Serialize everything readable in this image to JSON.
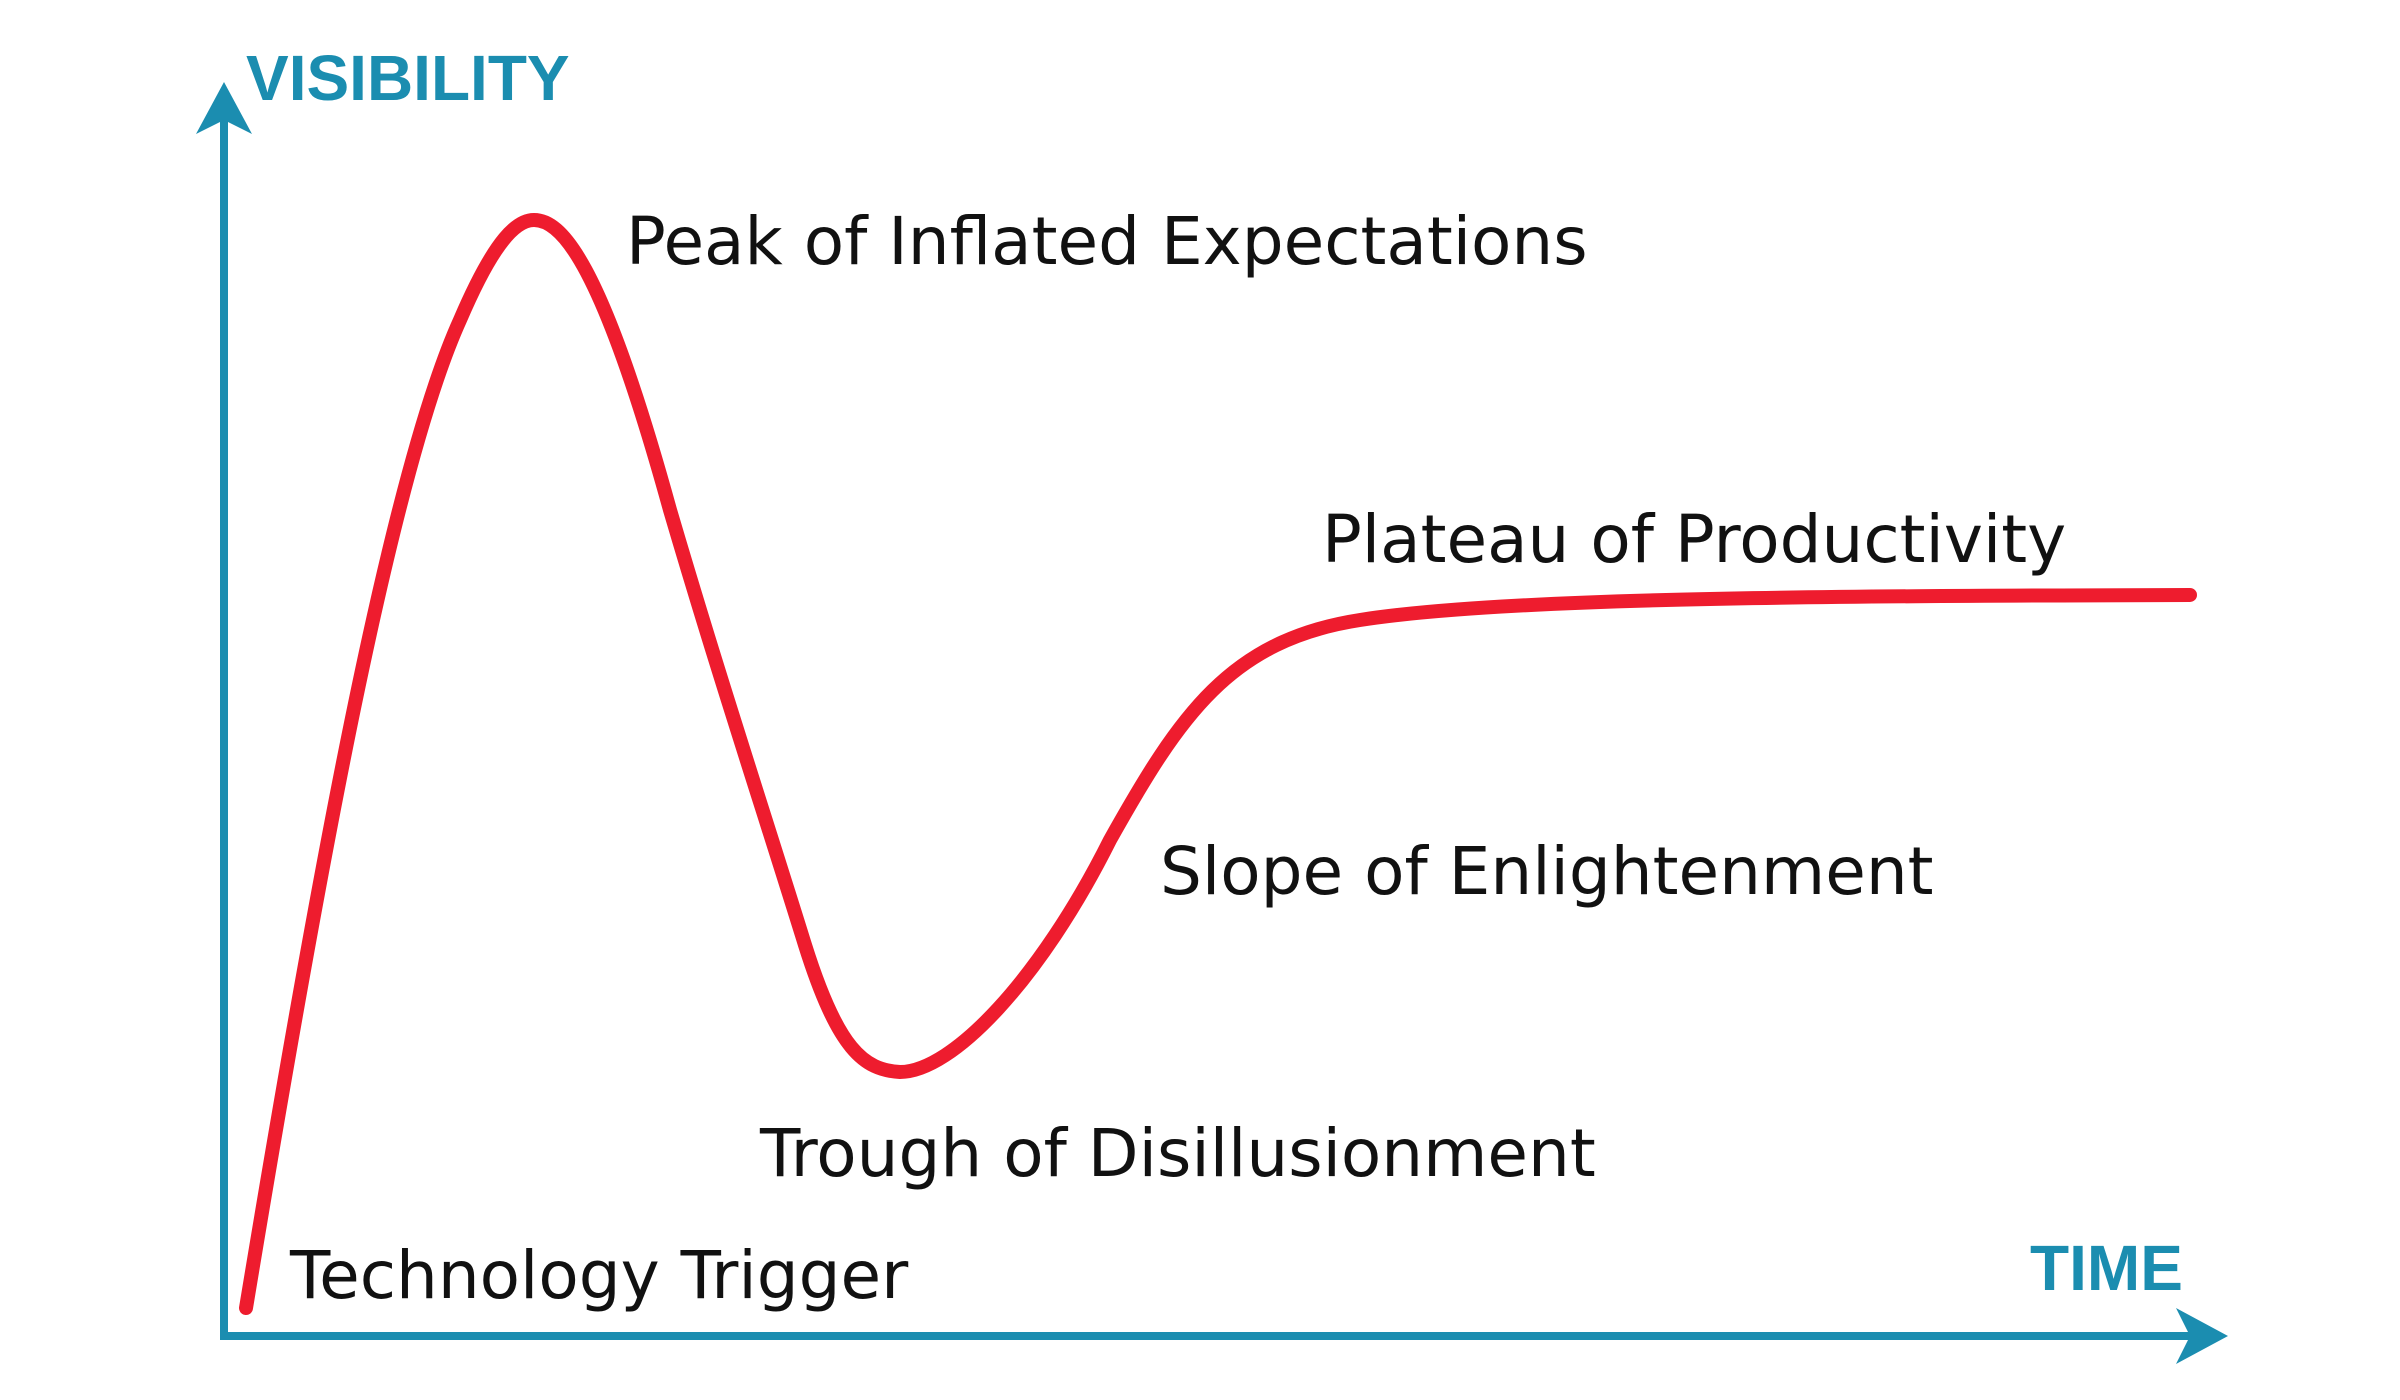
{
  "axes": {
    "y_label": "VISIBILITY",
    "x_label": "TIME"
  },
  "phases": {
    "technology_trigger": "Technology Trigger",
    "peak": "Peak of Inflated Expectations",
    "trough": "Trough of Disillusionment",
    "slope": "Slope of Enlightenment",
    "plateau": "Plateau of Productivity"
  },
  "colors": {
    "axis": "#1b8db0",
    "curve": "#ee1c2e",
    "text": "#111111",
    "background": "#ffffff"
  }
}
